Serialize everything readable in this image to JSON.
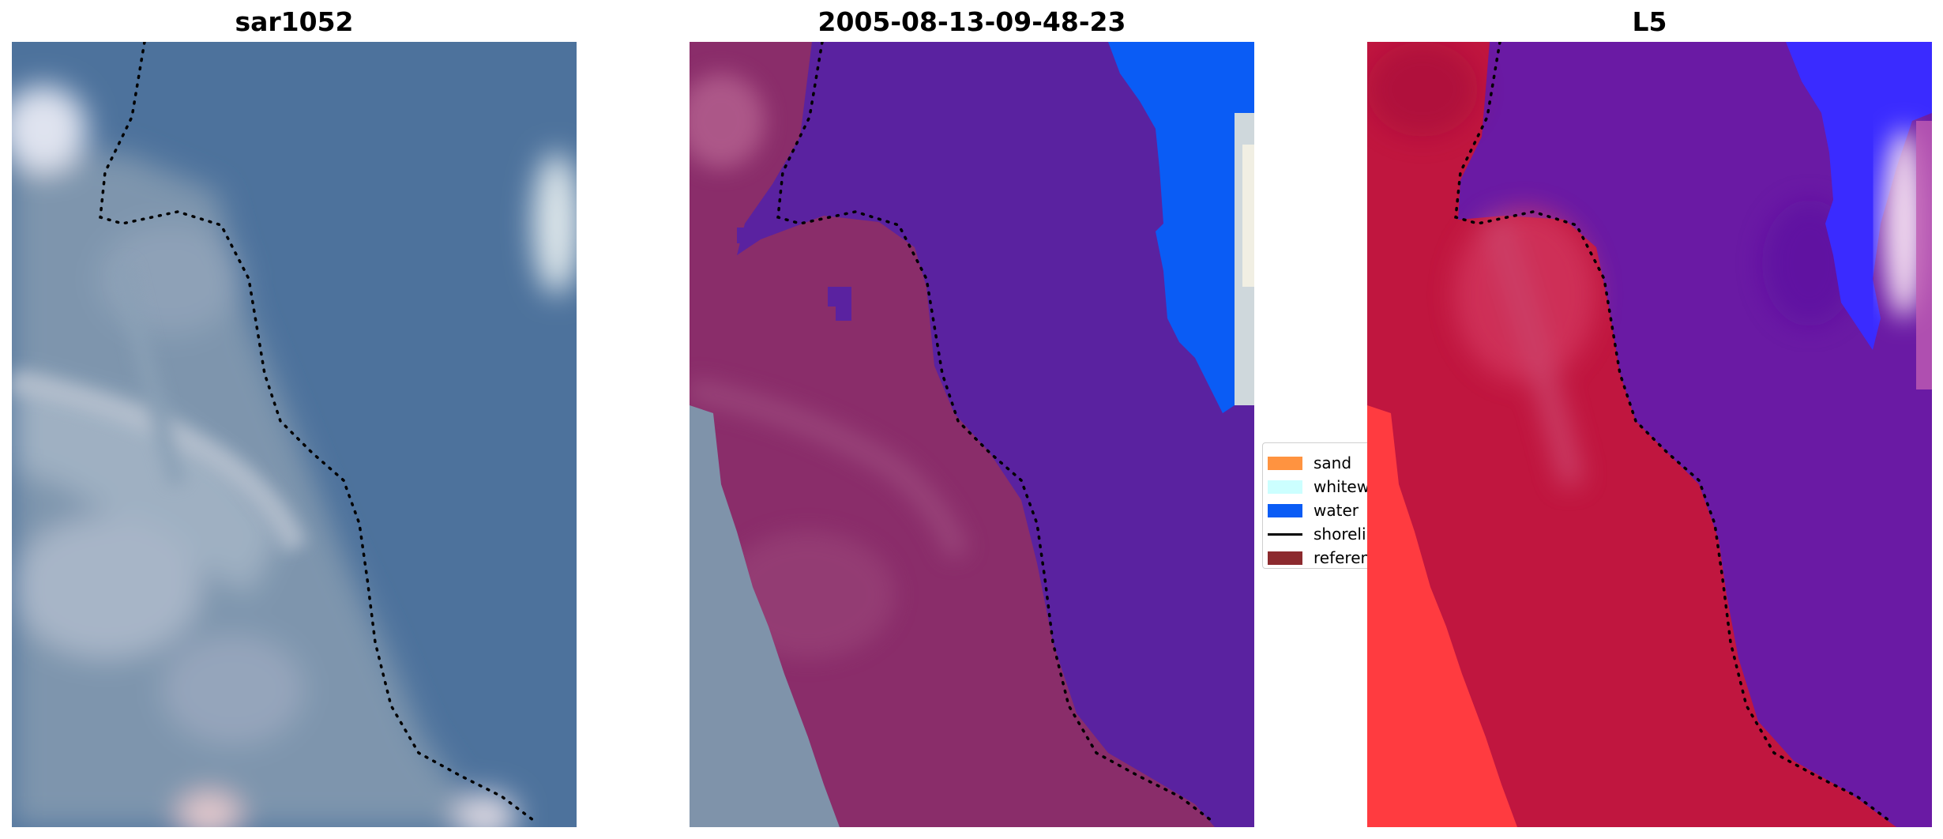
{
  "panels": {
    "left": {
      "title": "sar1052"
    },
    "middle": {
      "title": "2005-08-13-09-48-23"
    },
    "right": {
      "title": "L5"
    }
  },
  "legend": {
    "items": [
      {
        "label": "sand",
        "kind": "patch",
        "color": "#ff9340"
      },
      {
        "label": "whitewater",
        "kind": "patch",
        "color": "#ccffff"
      },
      {
        "label": "water",
        "kind": "patch",
        "color": "#0a5cf5"
      },
      {
        "label": "shoreline",
        "kind": "line",
        "color": "#000000"
      },
      {
        "label": "reference",
        "kind": "patch",
        "color": "#8c2a2e"
      }
    ]
  },
  "colors": {
    "water_class": "#0a5cf5",
    "sea_overlay": "#5a22a0",
    "land_overlay": "#8a2d6a",
    "l5_land": "#c0163f",
    "l5_sea": "#6a1aa4",
    "shoreline": "#000000"
  }
}
